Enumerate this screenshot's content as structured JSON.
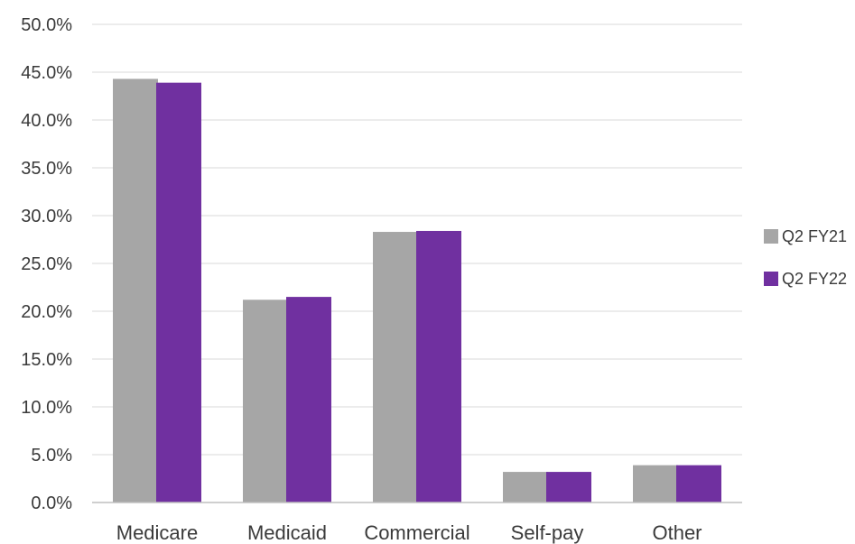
{
  "chart_data": {
    "type": "bar",
    "categories": [
      "Medicare",
      "Medicaid",
      "Commercial",
      "Self-pay",
      "Other"
    ],
    "series": [
      {
        "name": "Q2 FY21",
        "color": "#a6a6a6",
        "values": [
          44.3,
          21.2,
          28.3,
          3.2,
          3.9
        ]
      },
      {
        "name": "Q2 FY22",
        "color": "#7030a0",
        "values": [
          43.9,
          21.5,
          28.4,
          3.2,
          3.9
        ]
      }
    ],
    "ylim": [
      0,
      50
    ],
    "yticks": [
      0,
      5,
      10,
      15,
      20,
      25,
      30,
      35,
      40,
      45,
      50
    ],
    "ytick_format": "percent_1dp",
    "grid": true,
    "legend_position": "right"
  }
}
